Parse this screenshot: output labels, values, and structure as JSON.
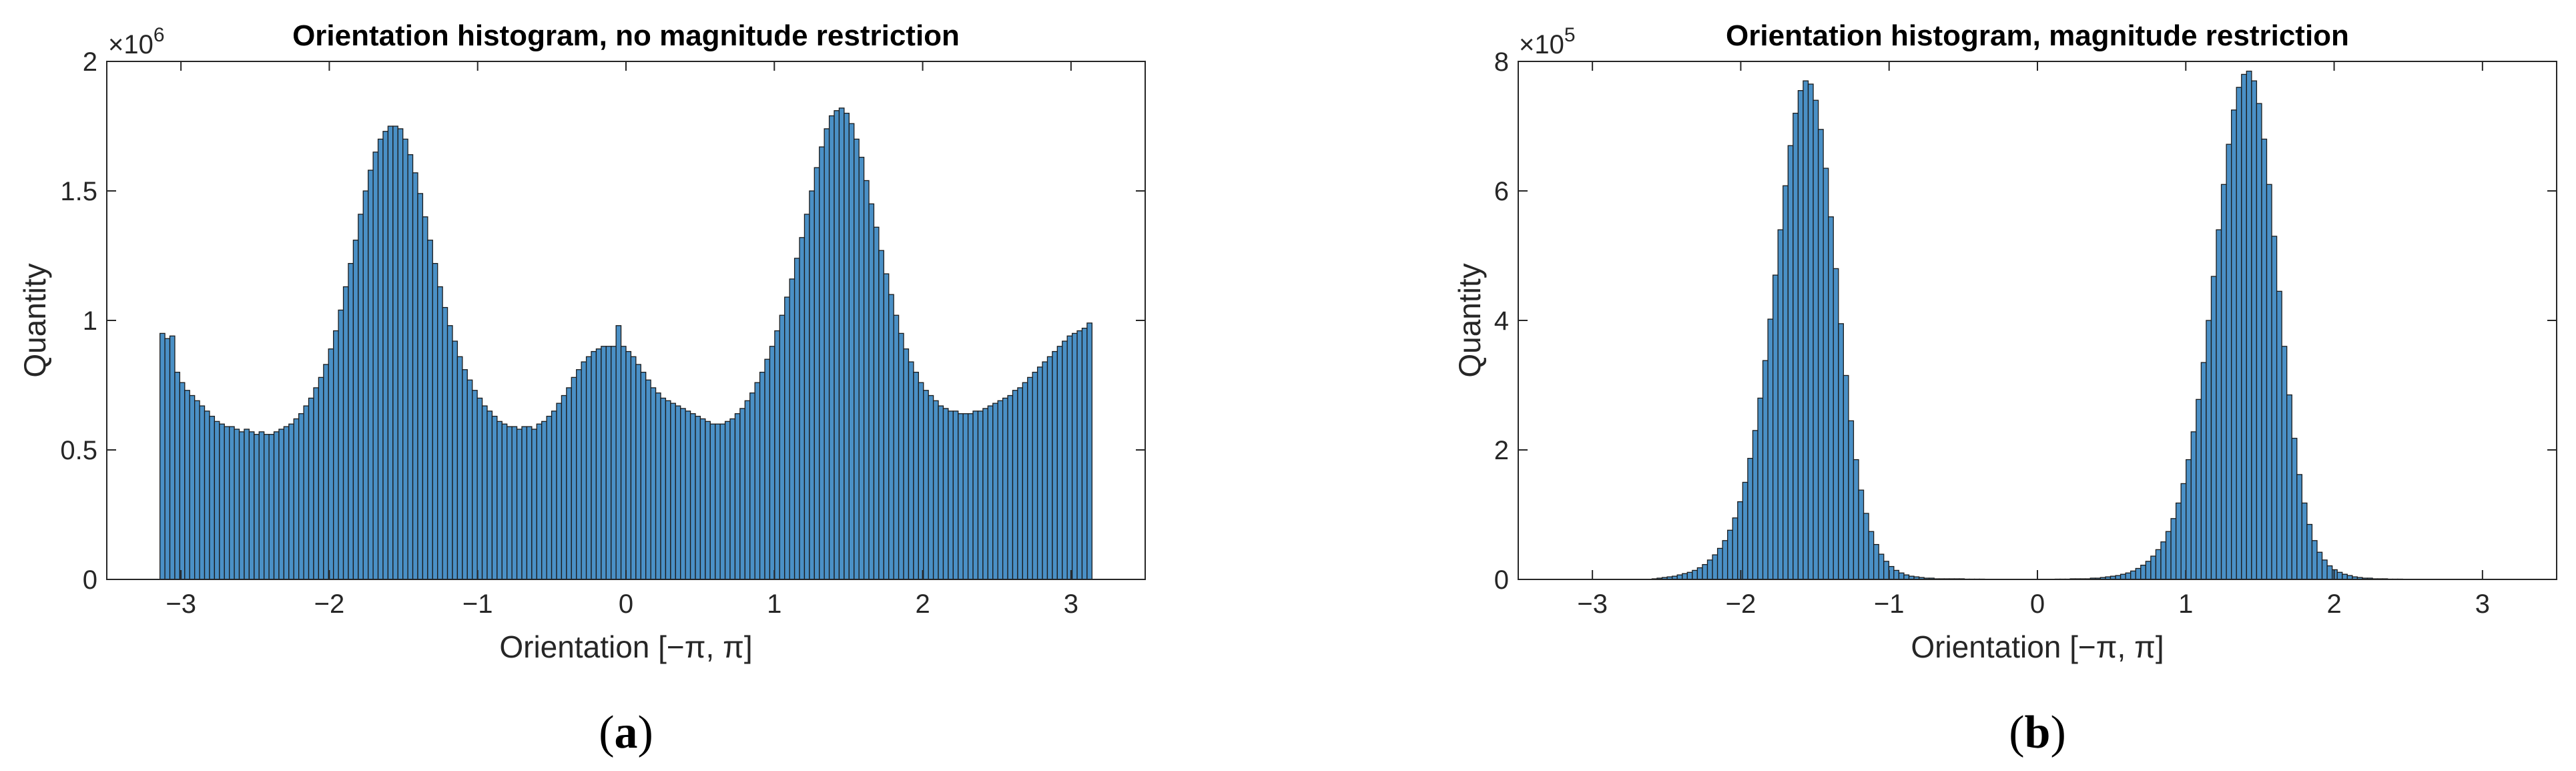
{
  "chart_data": [
    {
      "type": "bar",
      "title": "Orientation histogram, no magnitude restriction",
      "xlabel": "Orientation [−π, π]",
      "ylabel": "Quantity",
      "exponent_label": "×10",
      "exponent_power": "6",
      "caption_letter": "a",
      "xlim": [
        -3.5,
        3.5
      ],
      "ylim": [
        0,
        2
      ],
      "xticks": [
        -3,
        -2,
        -1,
        0,
        1,
        2,
        3
      ],
      "xtick_labels": [
        "−3",
        "−2",
        "−1",
        "0",
        "1",
        "2",
        "3"
      ],
      "yticks": [
        0,
        0.5,
        1,
        1.5,
        2
      ],
      "ytick_labels": [
        "0",
        "0.5",
        "1",
        "1.5",
        "2"
      ],
      "grid": false,
      "bar_color": "#4A90C6",
      "edge_color": "#1a1a1a",
      "bin_range": [
        -3.1416,
        3.1416
      ],
      "values": [
        0.95,
        0.93,
        0.94,
        0.8,
        0.76,
        0.73,
        0.71,
        0.69,
        0.67,
        0.65,
        0.63,
        0.61,
        0.6,
        0.59,
        0.59,
        0.58,
        0.57,
        0.58,
        0.57,
        0.56,
        0.57,
        0.56,
        0.56,
        0.57,
        0.58,
        0.59,
        0.6,
        0.62,
        0.64,
        0.67,
        0.7,
        0.74,
        0.78,
        0.83,
        0.89,
        0.96,
        1.04,
        1.13,
        1.22,
        1.31,
        1.41,
        1.5,
        1.58,
        1.65,
        1.7,
        1.73,
        1.75,
        1.75,
        1.74,
        1.7,
        1.64,
        1.57,
        1.49,
        1.4,
        1.31,
        1.22,
        1.13,
        1.05,
        0.98,
        0.92,
        0.86,
        0.81,
        0.77,
        0.73,
        0.7,
        0.67,
        0.65,
        0.63,
        0.61,
        0.6,
        0.59,
        0.59,
        0.58,
        0.59,
        0.59,
        0.58,
        0.6,
        0.61,
        0.63,
        0.65,
        0.68,
        0.71,
        0.74,
        0.78,
        0.81,
        0.84,
        0.86,
        0.88,
        0.89,
        0.9,
        0.9,
        0.9,
        0.98,
        0.9,
        0.88,
        0.86,
        0.83,
        0.8,
        0.77,
        0.74,
        0.72,
        0.7,
        0.69,
        0.68,
        0.67,
        0.66,
        0.65,
        0.64,
        0.63,
        0.62,
        0.61,
        0.6,
        0.6,
        0.6,
        0.61,
        0.62,
        0.64,
        0.66,
        0.69,
        0.72,
        0.76,
        0.8,
        0.85,
        0.9,
        0.96,
        1.02,
        1.09,
        1.16,
        1.24,
        1.32,
        1.41,
        1.5,
        1.59,
        1.67,
        1.74,
        1.79,
        1.81,
        1.82,
        1.8,
        1.76,
        1.7,
        1.63,
        1.54,
        1.45,
        1.36,
        1.27,
        1.18,
        1.1,
        1.02,
        0.95,
        0.89,
        0.84,
        0.8,
        0.76,
        0.73,
        0.71,
        0.69,
        0.67,
        0.66,
        0.65,
        0.65,
        0.64,
        0.64,
        0.64,
        0.65,
        0.65,
        0.66,
        0.67,
        0.68,
        0.69,
        0.7,
        0.71,
        0.73,
        0.74,
        0.76,
        0.78,
        0.8,
        0.82,
        0.84,
        0.86,
        0.88,
        0.9,
        0.92,
        0.94,
        0.95,
        0.96,
        0.97,
        0.99
      ]
    },
    {
      "type": "bar",
      "title": "Orientation histogram, magnitude restriction",
      "xlabel": "Orientation [−π, π]",
      "ylabel": "Quantity",
      "exponent_label": "×10",
      "exponent_power": "5",
      "caption_letter": "b",
      "xlim": [
        -3.5,
        3.5
      ],
      "ylim": [
        0,
        8
      ],
      "xticks": [
        -3,
        -2,
        -1,
        0,
        1,
        2,
        3
      ],
      "xtick_labels": [
        "−3",
        "−2",
        "−1",
        "0",
        "1",
        "2",
        "3"
      ],
      "yticks": [
        0,
        2,
        4,
        6,
        8
      ],
      "ytick_labels": [
        "0",
        "2",
        "4",
        "6",
        "8"
      ],
      "grid": false,
      "bar_color": "#4A90C6",
      "edge_color": "#1a1a1a",
      "bin_range": [
        -3.1416,
        3.1416
      ],
      "values": [
        0,
        0,
        0,
        0,
        0,
        0,
        0,
        0,
        0,
        0,
        0,
        0,
        0,
        0,
        0,
        0,
        0.01,
        0.02,
        0.03,
        0.04,
        0.05,
        0.07,
        0.09,
        0.11,
        0.14,
        0.18,
        0.23,
        0.3,
        0.38,
        0.48,
        0.6,
        0.76,
        0.95,
        1.2,
        1.5,
        1.87,
        2.3,
        2.8,
        3.38,
        4.02,
        4.7,
        5.4,
        6.08,
        6.7,
        7.2,
        7.55,
        7.7,
        7.65,
        7.4,
        6.95,
        6.35,
        5.6,
        4.8,
        3.95,
        3.15,
        2.45,
        1.85,
        1.38,
        1.02,
        0.74,
        0.54,
        0.39,
        0.28,
        0.2,
        0.14,
        0.1,
        0.07,
        0.05,
        0.04,
        0.03,
        0.02,
        0.02,
        0.01,
        0.01,
        0.01,
        0.01,
        0.01,
        0.01,
        0.005,
        0.005,
        0.005,
        0.005,
        0,
        0,
        0,
        0,
        0,
        0,
        0,
        0,
        0,
        0,
        0,
        0,
        0,
        0,
        0.005,
        0.005,
        0.005,
        0.01,
        0.01,
        0.01,
        0.01,
        0.02,
        0.02,
        0.03,
        0.04,
        0.05,
        0.06,
        0.08,
        0.1,
        0.13,
        0.17,
        0.22,
        0.28,
        0.36,
        0.46,
        0.58,
        0.74,
        0.94,
        1.18,
        1.48,
        1.85,
        2.28,
        2.78,
        3.35,
        4.0,
        4.68,
        5.4,
        6.1,
        6.72,
        7.25,
        7.6,
        7.8,
        7.85,
        7.7,
        7.35,
        6.8,
        6.1,
        5.3,
        4.45,
        3.6,
        2.85,
        2.18,
        1.62,
        1.18,
        0.85,
        0.6,
        0.42,
        0.3,
        0.21,
        0.15,
        0.11,
        0.08,
        0.06,
        0.04,
        0.03,
        0.02,
        0.02,
        0.01,
        0.01,
        0.01,
        0.005,
        0.005,
        0.005,
        0,
        0,
        0,
        0,
        0,
        0,
        0,
        0,
        0,
        0,
        0,
        0,
        0,
        0,
        0,
        0,
        0,
        0,
        0,
        0
      ]
    }
  ]
}
